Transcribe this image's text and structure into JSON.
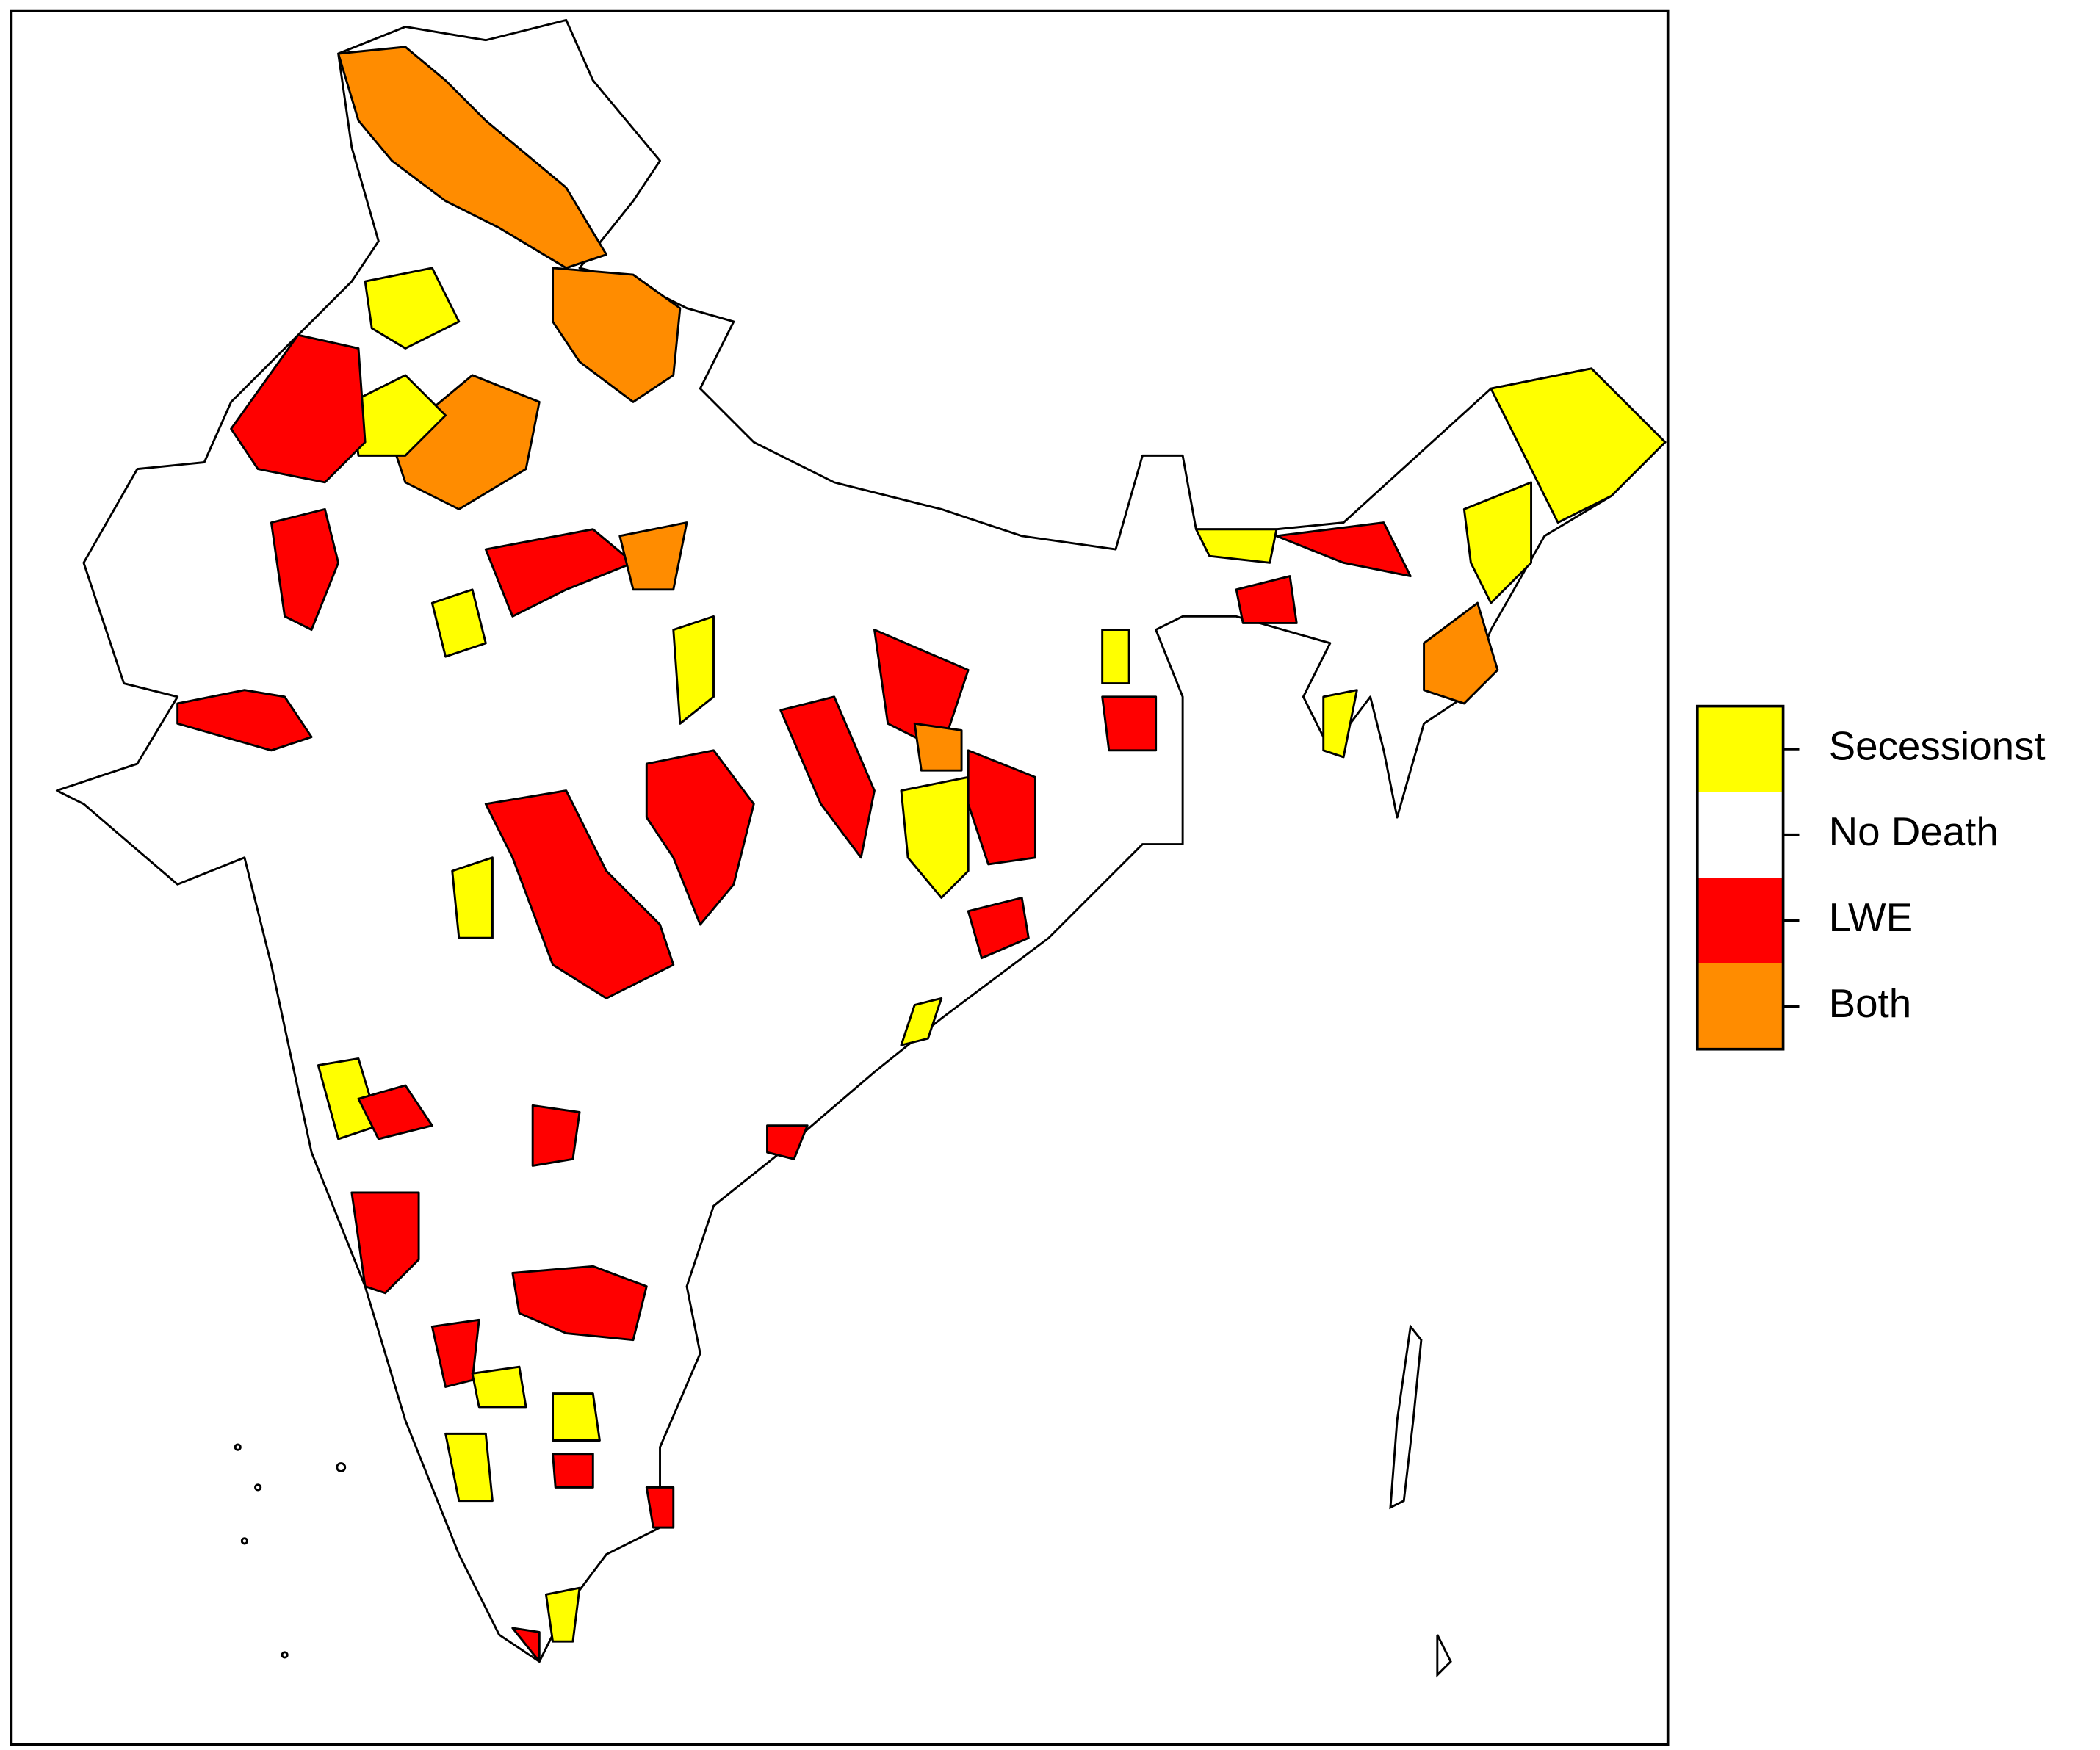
{
  "legend": {
    "items": [
      {
        "label": "Secessionst",
        "color": "#ffff00"
      },
      {
        "label": "No Death",
        "color": "#ffffff"
      },
      {
        "label": "LWE",
        "color": "#ff0000"
      },
      {
        "label": "Both",
        "color": "#ff8c00"
      }
    ]
  }
}
